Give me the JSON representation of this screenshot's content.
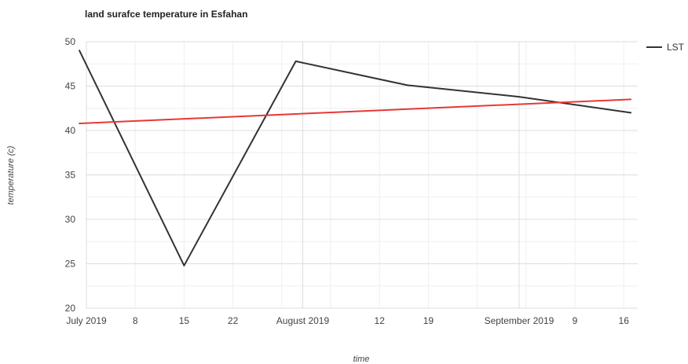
{
  "chart_data": {
    "type": "line",
    "title": "land surafce temperature in Esfahan",
    "xlabel": "time",
    "ylabel": "temperature (c)",
    "ylim": [
      20,
      50
    ],
    "yticks": [
      20,
      25,
      30,
      35,
      40,
      45,
      50
    ],
    "xlim": [
      "2019-07-01",
      "2019-09-18"
    ],
    "xticks": [
      {
        "date": "2019-07-01",
        "label": "July 2019"
      },
      {
        "date": "2019-07-08",
        "label": "8"
      },
      {
        "date": "2019-07-15",
        "label": "15"
      },
      {
        "date": "2019-07-22",
        "label": "22"
      },
      {
        "date": "2019-08-01",
        "label": "August 2019"
      },
      {
        "date": "2019-08-12",
        "label": "12"
      },
      {
        "date": "2019-08-19",
        "label": "19"
      },
      {
        "date": "2019-09-01",
        "label": "September 2019"
      },
      {
        "date": "2019-09-09",
        "label": "9"
      },
      {
        "date": "2019-09-16",
        "label": "16"
      }
    ],
    "grid": true,
    "legend_position": "right",
    "series": [
      {
        "name": "LST",
        "color": "#333333",
        "show_in_legend": true,
        "points": [
          {
            "x": "2019-06-30",
            "y": 49.0
          },
          {
            "x": "2019-07-15",
            "y": 24.8
          },
          {
            "x": "2019-07-31",
            "y": 47.8
          },
          {
            "x": "2019-08-16",
            "y": 45.1
          },
          {
            "x": "2019-09-01",
            "y": 43.8
          },
          {
            "x": "2019-09-17",
            "y": 42.0
          }
        ]
      },
      {
        "color": "#e53935",
        "show_in_legend": false,
        "points": [
          {
            "x": "2019-06-30",
            "y": 40.8
          },
          {
            "x": "2019-09-17",
            "y": 43.5
          }
        ]
      }
    ]
  }
}
